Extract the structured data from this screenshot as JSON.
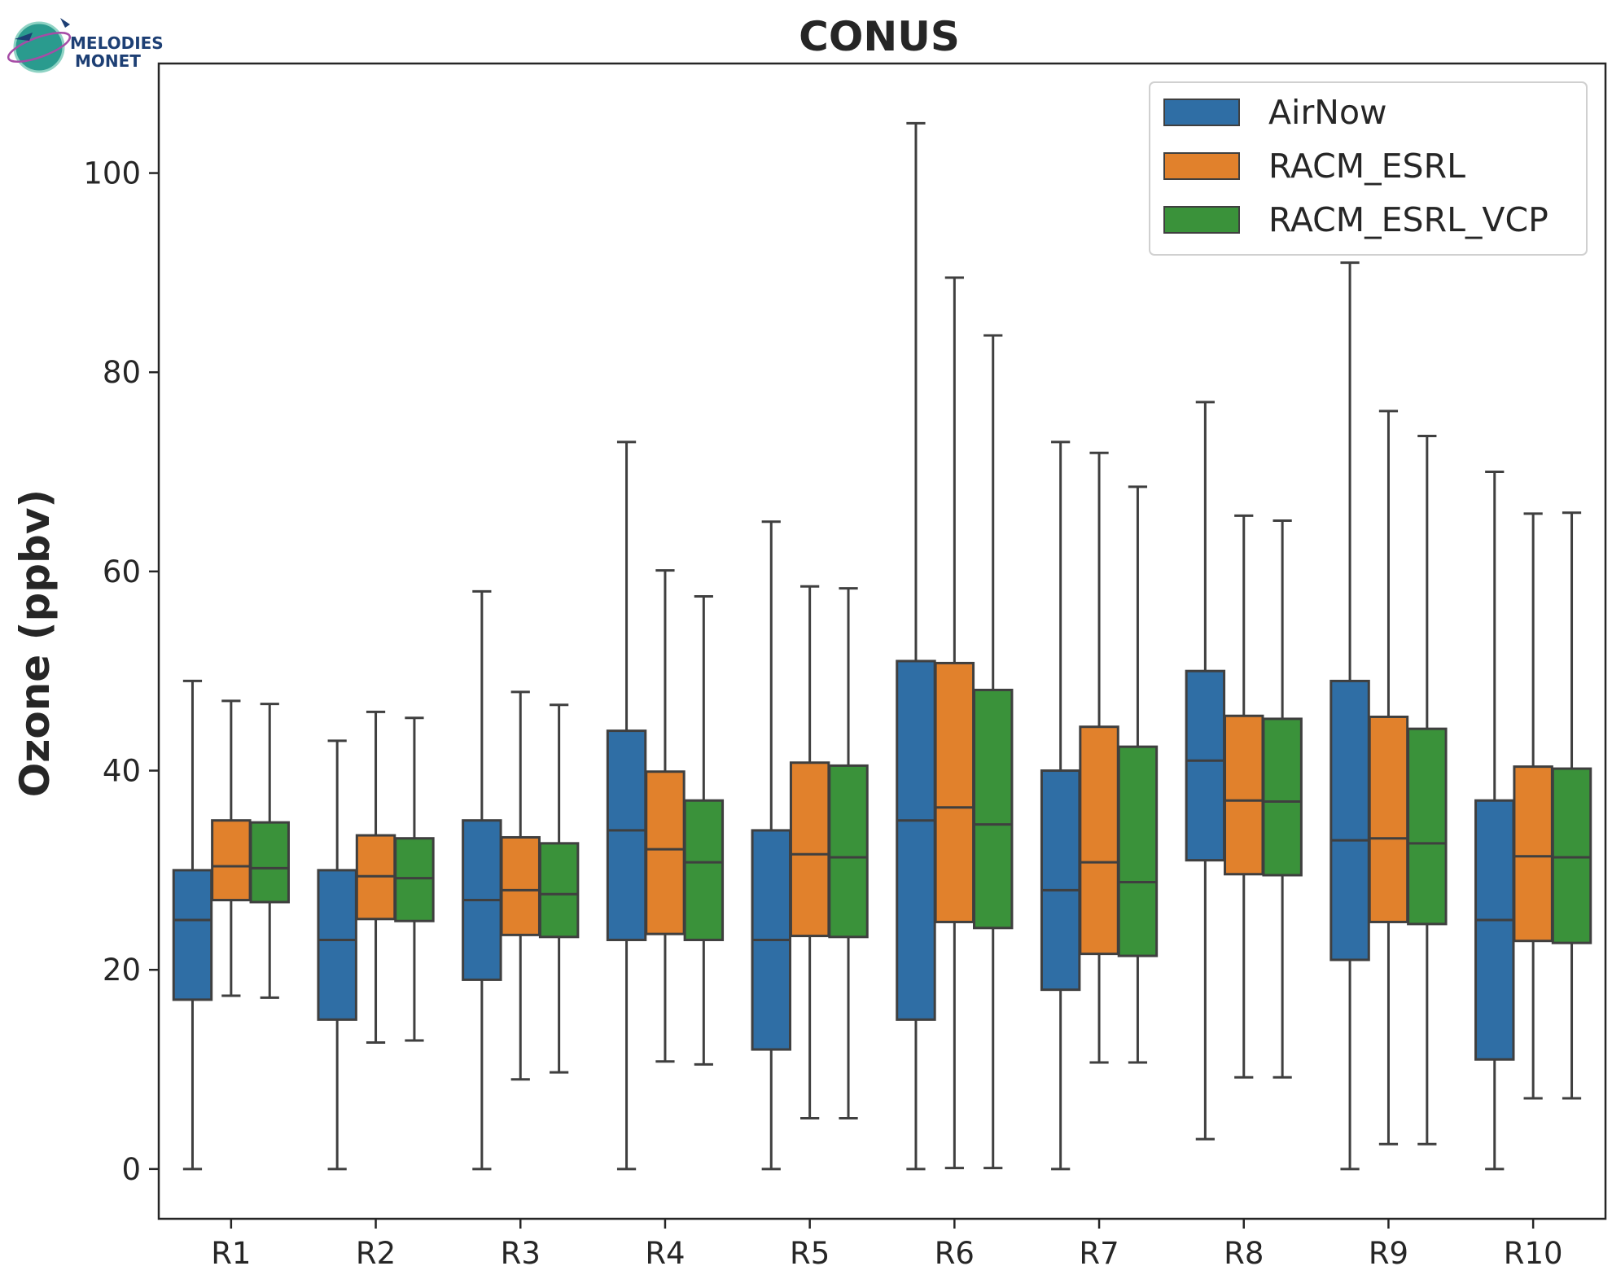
{
  "chart_data": {
    "type": "box",
    "title": "CONUS",
    "xlabel": "",
    "ylabel": "Ozone (ppbv)",
    "ylim": [
      -5,
      111
    ],
    "yticks": [
      0,
      20,
      40,
      60,
      80,
      100
    ],
    "grid": false,
    "legend_position": "top-right",
    "categories": [
      "R1",
      "R2",
      "R3",
      "R4",
      "R5",
      "R6",
      "R7",
      "R8",
      "R9",
      "R10"
    ],
    "series": [
      {
        "name": "AirNow",
        "color": "#2f6ea5",
        "boxes": [
          {
            "whislo": 0,
            "q1": 17,
            "med": 25,
            "q3": 30,
            "whishi": 49
          },
          {
            "whislo": 0,
            "q1": 15,
            "med": 23,
            "q3": 30,
            "whishi": 43
          },
          {
            "whislo": 0,
            "q1": 19,
            "med": 27,
            "q3": 35,
            "whishi": 58
          },
          {
            "whislo": 0,
            "q1": 23,
            "med": 34,
            "q3": 44,
            "whishi": 73
          },
          {
            "whislo": 0,
            "q1": 12,
            "med": 23,
            "q3": 34,
            "whishi": 65
          },
          {
            "whislo": 0,
            "q1": 15,
            "med": 35,
            "q3": 51,
            "whishi": 105
          },
          {
            "whislo": 0,
            "q1": 18,
            "med": 28,
            "q3": 40,
            "whishi": 73
          },
          {
            "whislo": 3,
            "q1": 31,
            "med": 41,
            "q3": 50,
            "whishi": 77
          },
          {
            "whislo": 0,
            "q1": 21,
            "med": 33,
            "q3": 49,
            "whishi": 91
          },
          {
            "whislo": 0,
            "q1": 11,
            "med": 25,
            "q3": 37,
            "whishi": 70
          }
        ]
      },
      {
        "name": "RACM_ESRL",
        "color": "#e1812c",
        "boxes": [
          {
            "whislo": 17.4,
            "q1": 27,
            "med": 30.4,
            "q3": 35,
            "whishi": 47
          },
          {
            "whislo": 12.7,
            "q1": 25.1,
            "med": 29.4,
            "q3": 33.5,
            "whishi": 45.9
          },
          {
            "whislo": 9,
            "q1": 23.5,
            "med": 28,
            "q3": 33.3,
            "whishi": 47.9
          },
          {
            "whislo": 10.8,
            "q1": 23.6,
            "med": 32.1,
            "q3": 39.9,
            "whishi": 60.1
          },
          {
            "whislo": 5.1,
            "q1": 23.4,
            "med": 31.6,
            "q3": 40.8,
            "whishi": 58.5
          },
          {
            "whislo": 0.1,
            "q1": 24.8,
            "med": 36.3,
            "q3": 50.8,
            "whishi": 89.5
          },
          {
            "whislo": 10.7,
            "q1": 21.6,
            "med": 30.8,
            "q3": 44.4,
            "whishi": 71.9
          },
          {
            "whislo": 9.2,
            "q1": 29.6,
            "med": 37,
            "q3": 45.5,
            "whishi": 65.6
          },
          {
            "whislo": 2.5,
            "q1": 24.8,
            "med": 33.2,
            "q3": 45.4,
            "whishi": 76.1
          },
          {
            "whislo": 7.1,
            "q1": 22.9,
            "med": 31.4,
            "q3": 40.4,
            "whishi": 65.8
          }
        ]
      },
      {
        "name": "RACM_ESRL_VCP",
        "color": "#3a923a",
        "boxes": [
          {
            "whislo": 17.2,
            "q1": 26.8,
            "med": 30.2,
            "q3": 34.8,
            "whishi": 46.7
          },
          {
            "whislo": 12.9,
            "q1": 24.9,
            "med": 29.2,
            "q3": 33.2,
            "whishi": 45.3
          },
          {
            "whislo": 9.7,
            "q1": 23.3,
            "med": 27.6,
            "q3": 32.7,
            "whishi": 46.6
          },
          {
            "whislo": 10.5,
            "q1": 23,
            "med": 30.8,
            "q3": 37,
            "whishi": 57.5
          },
          {
            "whislo": 5.1,
            "q1": 23.3,
            "med": 31.3,
            "q3": 40.5,
            "whishi": 58.3
          },
          {
            "whislo": 0.1,
            "q1": 24.2,
            "med": 34.6,
            "q3": 48.1,
            "whishi": 83.7
          },
          {
            "whislo": 10.7,
            "q1": 21.4,
            "med": 28.8,
            "q3": 42.4,
            "whishi": 68.5
          },
          {
            "whislo": 9.2,
            "q1": 29.5,
            "med": 36.9,
            "q3": 45.2,
            "whishi": 65.1
          },
          {
            "whislo": 2.5,
            "q1": 24.6,
            "med": 32.7,
            "q3": 44.2,
            "whishi": 73.6
          },
          {
            "whislo": 7.1,
            "q1": 22.7,
            "med": 31.3,
            "q3": 40.2,
            "whishi": 65.9
          }
        ]
      }
    ]
  },
  "logo": {
    "line1": "MELODIES",
    "line2": "MONET"
  }
}
